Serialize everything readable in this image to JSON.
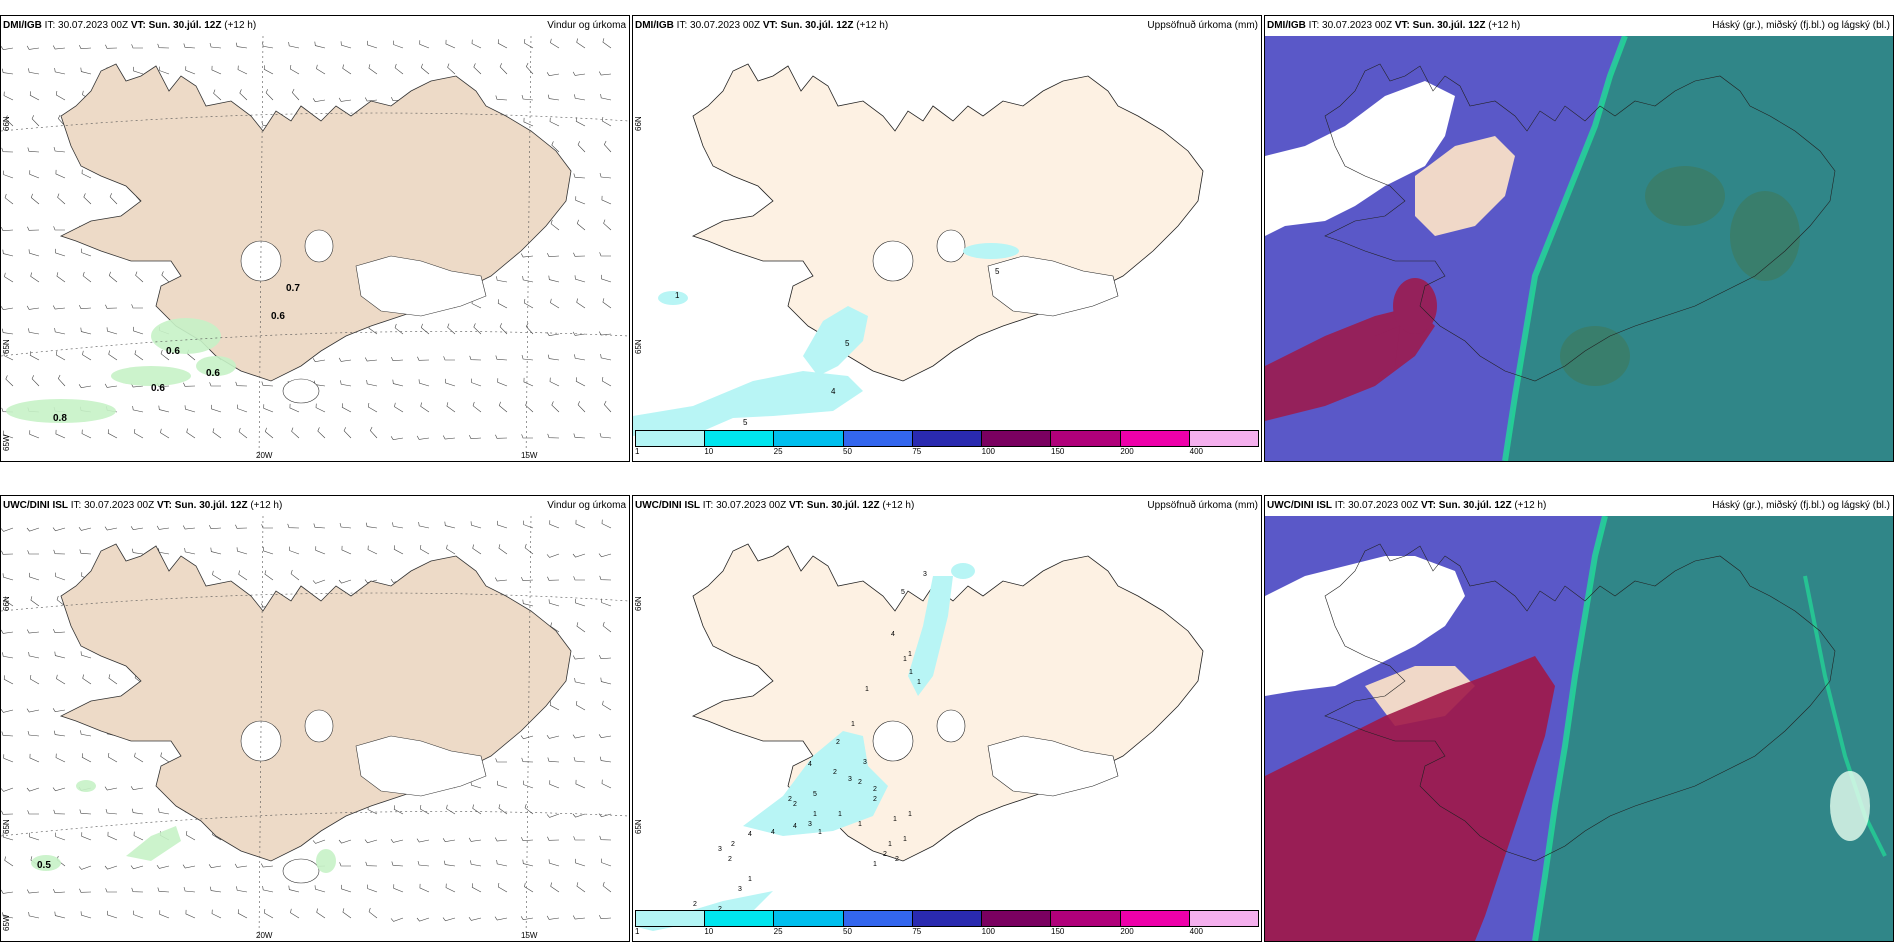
{
  "rows": [
    {
      "model": "DMI/IGB",
      "panels": [
        {
          "model": "DMI/IGB",
          "it": "IT: 30.07.2023 00Z",
          "vt_label": "VT:",
          "vt": "Sun. 30.júl. 12Z",
          "lead": "(+12 h)",
          "title": "Vindur og úrkoma",
          "values": [
            "0.7",
            "0.6",
            "0.6",
            "0.6",
            "0.6",
            "0.8"
          ],
          "grid_labels": [
            "66N",
            "65N",
            "65W",
            "20W",
            "15W"
          ]
        },
        {
          "model": "DMI/IGB",
          "it": "IT: 30.07.2023 00Z",
          "vt_label": "VT:",
          "vt": "Sun. 30.júl. 12Z",
          "lead": "(+12 h)",
          "title": "Uppsöfnuð úrkoma (mm)",
          "values": [
            "1",
            "5",
            "5",
            "4",
            "5"
          ],
          "grid_labels": [
            "66N",
            "65N"
          ]
        },
        {
          "model": "DMI/IGB",
          "it": "IT: 30.07.2023 00Z",
          "vt_label": "VT:",
          "vt": "Sun. 30.júl. 12Z",
          "lead": "(+12 h)",
          "title": "Háský (gr.), miðský (fj.bl.) og lágský (bl.)"
        }
      ]
    },
    {
      "model": "UWC/DINI ISL",
      "panels": [
        {
          "model": "UWC/DINI ISL",
          "it": "IT: 30.07.2023 00Z",
          "vt_label": "VT:",
          "vt": "Sun. 30.júl. 12Z",
          "lead": "(+12 h)",
          "title": "Vindur og úrkoma",
          "values": [
            "0.5"
          ],
          "grid_labels": [
            "66N",
            "65N",
            "65W",
            "20W",
            "15W"
          ]
        },
        {
          "model": "UWC/DINI ISL",
          "it": "IT: 30.07.2023 00Z",
          "vt_label": "VT:",
          "vt": "Sun. 30.júl. 12Z",
          "lead": "(+12 h)",
          "title": "Uppsöfnuð úrkoma (mm)",
          "values": [
            "3",
            "5",
            "1",
            "1",
            "4",
            "1",
            "1",
            "1",
            "2",
            "1",
            "4",
            "2",
            "3",
            "3",
            "2",
            "2",
            "1",
            "2",
            "1",
            "5",
            "2",
            "2",
            "4",
            "4",
            "4",
            "3",
            "1",
            "1",
            "1",
            "1",
            "1",
            "1",
            "2",
            "2",
            "3",
            "2",
            "1",
            "3",
            "2",
            "2",
            "2",
            "2",
            "1"
          ],
          "grid_labels": [
            "66N",
            "65N"
          ]
        },
        {
          "model": "UWC/DINI ISL",
          "it": "IT: 30.07.2023 00Z",
          "vt_label": "VT:",
          "vt": "Sun. 30.júl. 12Z",
          "lead": "(+12 h)",
          "title": "Háský (gr.), miðský (fj.bl.) og lágský (bl.)"
        }
      ]
    }
  ],
  "colorbar": {
    "colors": [
      "#b3f5f5",
      "#00e5ee",
      "#00bfee",
      "#3366ee",
      "#2a2ab0",
      "#7a0060",
      "#b0007a",
      "#ee00aa",
      "#f5b0ee"
    ],
    "labels": [
      "1",
      "10",
      "25",
      "50",
      "75",
      "100",
      "150",
      "200",
      "400"
    ]
  },
  "map_colors": {
    "land": "#eddac7",
    "land_precip": "#fdf1e3",
    "precip_light": "#c7f2c7",
    "precip_cyan": "#b8f5f5",
    "cloud_low": "#5a58c8",
    "cloud_mid": "#a01848",
    "cloud_high": "#2d8a82",
    "cloud_high_edge": "#22dd99"
  }
}
